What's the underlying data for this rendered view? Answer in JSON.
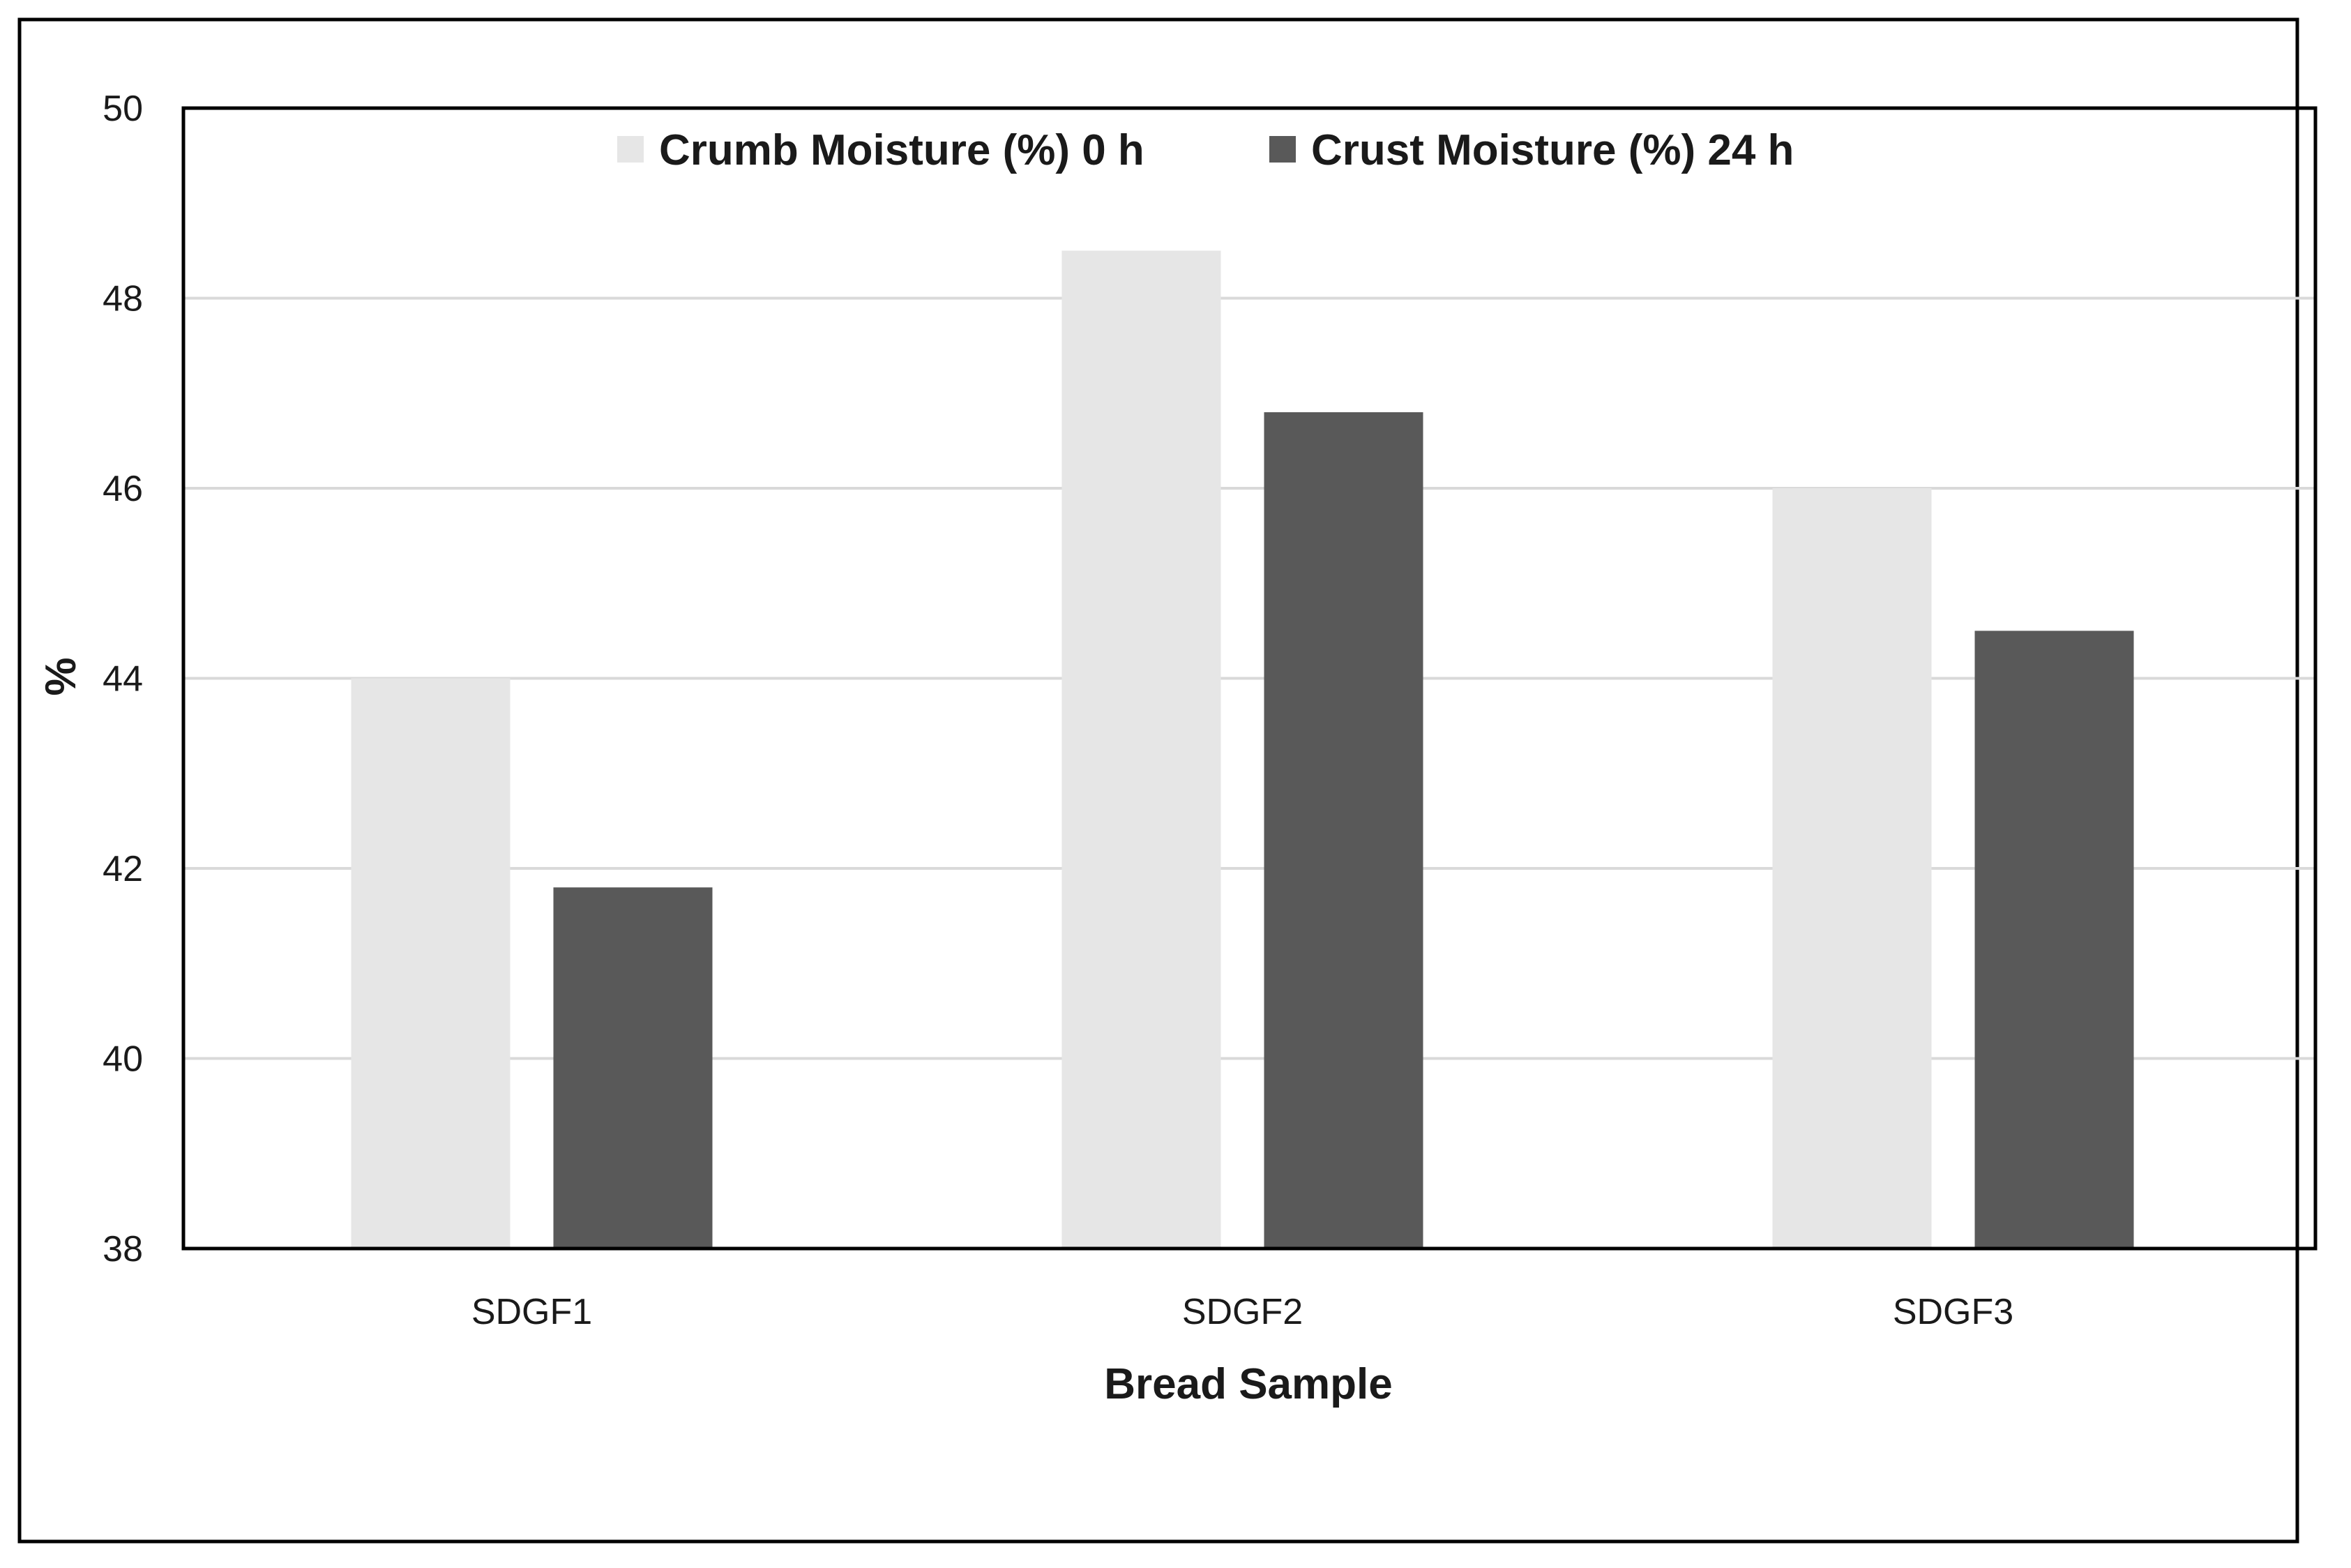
{
  "chart_data": {
    "type": "bar",
    "categories": [
      "SDGF1",
      "SDGF2",
      "SDGF3"
    ],
    "series": [
      {
        "name": "Crumb Moisture (%) 0 h",
        "values": [
          44.0,
          48.5,
          46.0
        ],
        "color": "#e6e6e6"
      },
      {
        "name": "Crust Moisture (%) 24 h",
        "values": [
          41.8,
          46.8,
          44.5
        ],
        "color": "#595959"
      }
    ],
    "xlabel": "Bread Sample",
    "ylabel": "%",
    "ylim": [
      38,
      50
    ],
    "yticks": [
      38,
      40,
      42,
      44,
      46,
      48,
      50
    ],
    "grid": true,
    "legend_position": "top-center",
    "colors": {
      "grid": "#d9d9d9",
      "frame": "#000000"
    }
  }
}
